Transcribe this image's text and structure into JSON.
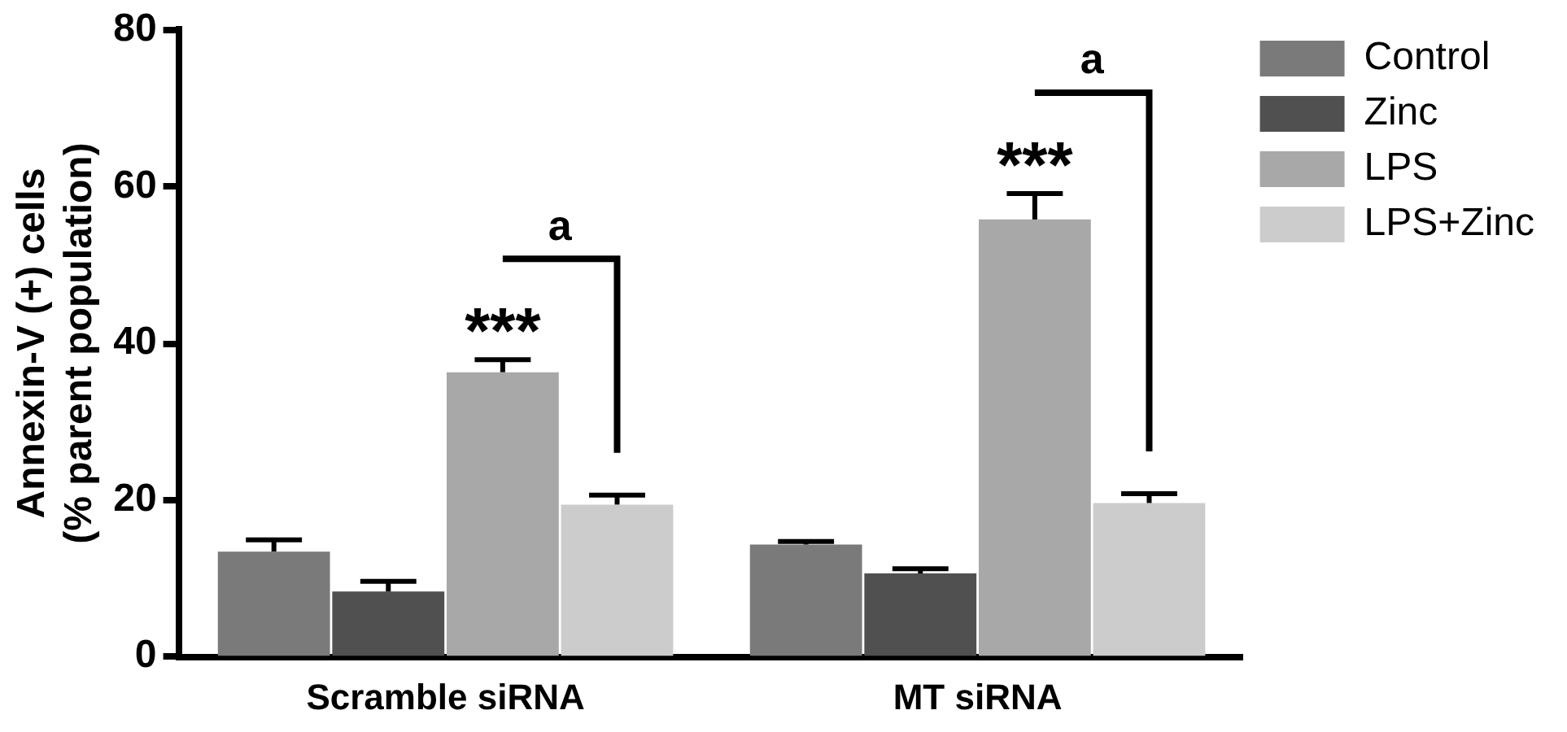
{
  "chart_data": {
    "type": "bar",
    "ylabel": "Annexin-V (+) cells\n(% parent population)",
    "categories": [
      "Scramble siRNA",
      "MT siRNA"
    ],
    "series": [
      {
        "name": "Control",
        "color": "#7a7a7a",
        "values": [
          13.4,
          14.3
        ],
        "errors": [
          [
            13.4,
            14.9
          ],
          [
            14.3,
            14.7
          ]
        ]
      },
      {
        "name": "Zinc",
        "color": "#505050",
        "values": [
          8.3,
          10.6
        ],
        "errors": [
          [
            8.3,
            9.6
          ],
          [
            10.6,
            11.2
          ]
        ]
      },
      {
        "name": "LPS",
        "color": "#a8a8a8",
        "values": [
          36.3,
          55.8
        ],
        "errors": [
          [
            36.3,
            37.9
          ],
          [
            55.8,
            59.1
          ]
        ]
      },
      {
        "name": "LPS+Zinc",
        "color": "#cccccc",
        "values": [
          19.4,
          19.6
        ],
        "errors": [
          [
            19.4,
            20.6
          ],
          [
            19.6,
            20.8
          ]
        ]
      }
    ],
    "ylim": [
      0,
      80
    ],
    "yticks": [
      0,
      20,
      40,
      60,
      80
    ],
    "grid": false,
    "legend": "top right",
    "annotations": [
      "***",
      "***",
      "a",
      "a"
    ]
  }
}
